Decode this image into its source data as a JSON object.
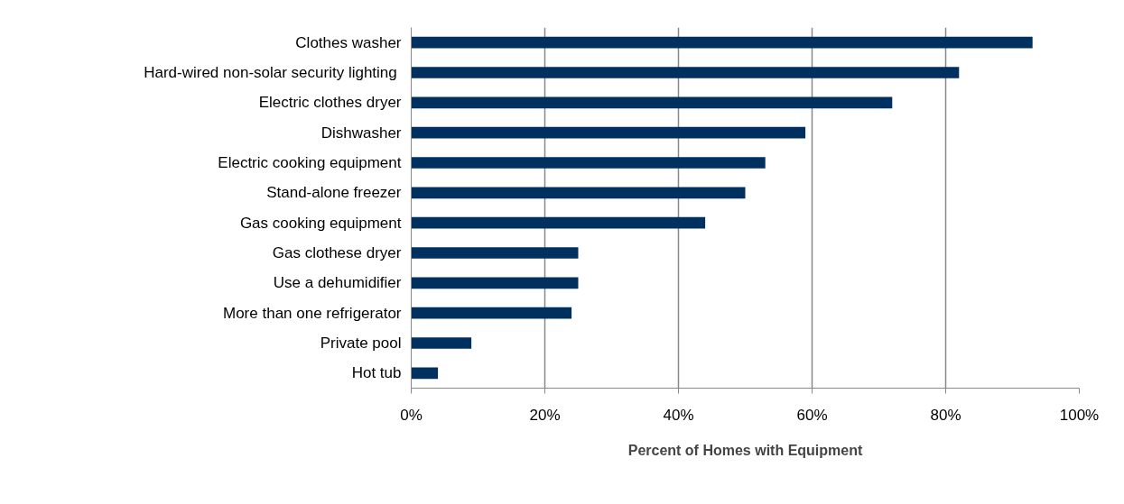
{
  "chart_data": {
    "type": "bar",
    "orientation": "horizontal",
    "xlabel": "Percent of Homes with Equipment",
    "categories": [
      "Clothes washer",
      "Hard-wired non-solar  security lighting",
      "Electric clothes dryer",
      "Dishwasher",
      "Electric cooking equipment",
      "Stand-alone freezer",
      "Gas cooking equipment",
      "Gas clothese dryer",
      "Use a dehumidifier",
      "More than one refrigerator",
      "Private pool",
      "Hot tub"
    ],
    "values": [
      93,
      82,
      72,
      59,
      53,
      50,
      44,
      25,
      25,
      24,
      9,
      4
    ],
    "color": "#003060",
    "xlim": [
      0,
      100
    ],
    "xticks": [
      {
        "value": 0,
        "label": "0%"
      },
      {
        "value": 20,
        "label": "20%"
      },
      {
        "value": 40,
        "label": "40%"
      },
      {
        "value": 60,
        "label": "60%"
      },
      {
        "value": 80,
        "label": "80%"
      },
      {
        "value": 100,
        "label": "100%"
      }
    ],
    "grid": "x"
  }
}
